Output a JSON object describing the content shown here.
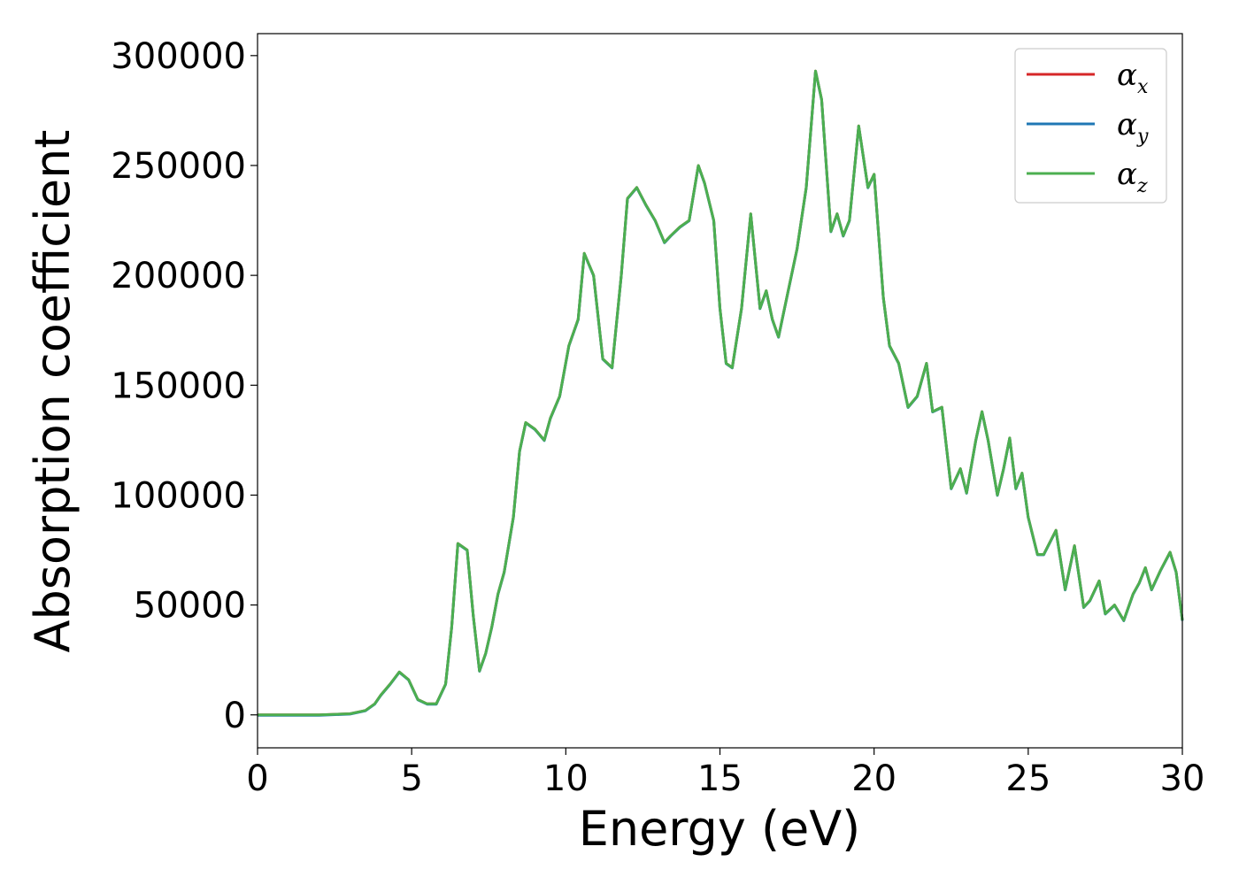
{
  "chart_data": {
    "type": "line",
    "xlabel": "Energy (eV)",
    "ylabel": "Absorption coefficient",
    "xlim": [
      0,
      30
    ],
    "ylim": [
      -15000,
      310000
    ],
    "xticks": [
      "0",
      "5",
      "10",
      "15",
      "20",
      "25",
      "30"
    ],
    "yticks": [
      "0",
      "50000",
      "100000",
      "150000",
      "200000",
      "250000",
      "300000"
    ],
    "grid": false,
    "legend_position": "top-right",
    "series": [
      {
        "name": "x",
        "symbol": "α",
        "color": "#d62728"
      },
      {
        "name": "y",
        "symbol": "α",
        "color": "#1f77b4"
      },
      {
        "name": "z",
        "symbol": "α",
        "color": "#4caf50"
      }
    ],
    "x": [
      0,
      1,
      2,
      3,
      3.5,
      3.8,
      4.0,
      4.3,
      4.6,
      4.9,
      5.2,
      5.5,
      5.8,
      6.1,
      6.3,
      6.5,
      6.8,
      7.0,
      7.2,
      7.4,
      7.6,
      7.8,
      8.0,
      8.3,
      8.5,
      8.7,
      9.0,
      9.3,
      9.5,
      9.8,
      10.1,
      10.4,
      10.6,
      10.9,
      11.2,
      11.5,
      11.8,
      12.0,
      12.3,
      12.6,
      12.9,
      13.2,
      13.4,
      13.7,
      14.0,
      14.3,
      14.5,
      14.8,
      15.0,
      15.2,
      15.4,
      15.7,
      16.0,
      16.3,
      16.5,
      16.7,
      16.9,
      17.2,
      17.5,
      17.8,
      18.1,
      18.3,
      18.6,
      18.8,
      19.0,
      19.2,
      19.5,
      19.8,
      20.0,
      20.3,
      20.5,
      20.8,
      21.1,
      21.4,
      21.7,
      21.9,
      22.2,
      22.5,
      22.8,
      23.0,
      23.3,
      23.5,
      23.7,
      24.0,
      24.2,
      24.4,
      24.6,
      24.8,
      25.0,
      25.3,
      25.5,
      25.9,
      26.2,
      26.5,
      26.8,
      27.0,
      27.3,
      27.5,
      27.8,
      28.1,
      28.4,
      28.6,
      28.8,
      29.0,
      29.3,
      29.6,
      29.8,
      30.0
    ],
    "values": [
      0,
      0,
      0,
      500,
      2000,
      5000,
      9000,
      14000,
      19500,
      16000,
      7000,
      5000,
      5000,
      14000,
      40000,
      78000,
      75000,
      45000,
      20000,
      28000,
      40000,
      55000,
      65000,
      90000,
      120000,
      133000,
      130000,
      125000,
      135000,
      145000,
      168000,
      180000,
      210000,
      200000,
      162000,
      158000,
      200000,
      235000,
      240000,
      232000,
      225000,
      215000,
      218000,
      222000,
      225000,
      250000,
      242000,
      225000,
      185000,
      160000,
      158000,
      185000,
      228000,
      185000,
      193000,
      180000,
      172000,
      192000,
      212000,
      240000,
      293000,
      280000,
      220000,
      228000,
      218000,
      225000,
      268000,
      240000,
      246000,
      190000,
      168000,
      160000,
      140000,
      145000,
      160000,
      138000,
      140000,
      103000,
      112000,
      101000,
      125000,
      138000,
      125000,
      100000,
      112000,
      126000,
      103000,
      110000,
      90000,
      73000,
      73000,
      84000,
      57000,
      77000,
      49000,
      52000,
      61000,
      46000,
      50000,
      43000,
      55000,
      60000,
      67000,
      57000,
      66000,
      74000,
      65000,
      43000
    ]
  }
}
